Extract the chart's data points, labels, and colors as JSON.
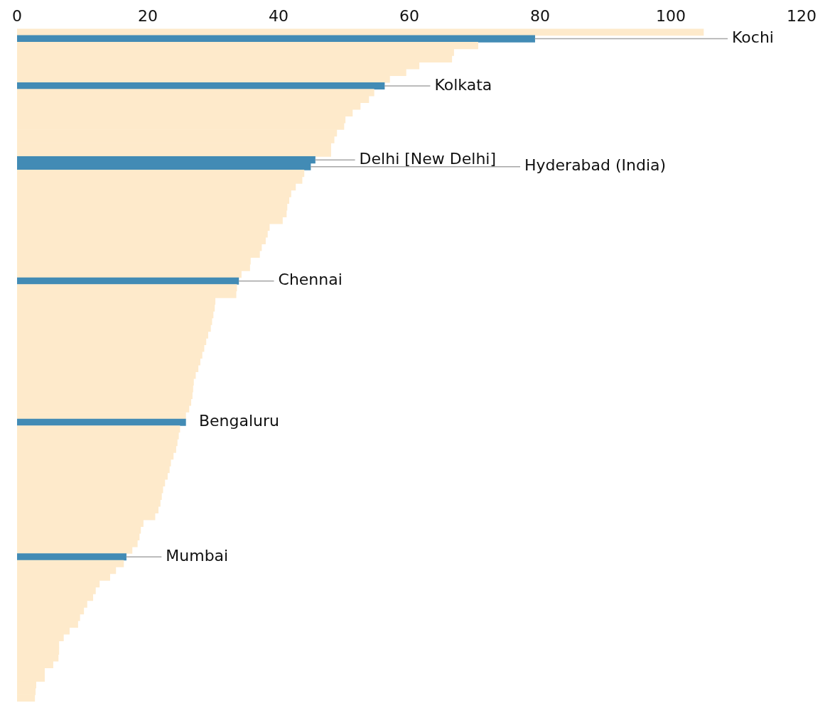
{
  "chart_data": {
    "type": "bar",
    "orientation": "horizontal",
    "categories": [
      null,
      "Kochi",
      null,
      null,
      null,
      null,
      null,
      null,
      "Kolkata",
      null,
      null,
      null,
      null,
      null,
      null,
      null,
      null,
      null,
      null,
      "Delhi [New Delhi]",
      "Hyderabad (India)",
      null,
      null,
      null,
      null,
      null,
      null,
      null,
      null,
      null,
      null,
      null,
      null,
      null,
      null,
      null,
      null,
      "Chennai",
      null,
      null,
      null,
      null,
      null,
      null,
      null,
      null,
      null,
      null,
      null,
      null,
      null,
      null,
      null,
      null,
      null,
      null,
      null,
      null,
      "Bengaluru",
      null,
      null,
      null,
      null,
      null,
      null,
      null,
      null,
      null,
      null,
      null,
      null,
      null,
      null,
      null,
      null,
      null,
      null,
      null,
      "Mumbai",
      null,
      null,
      null,
      null,
      null,
      null,
      null,
      null,
      null,
      null,
      null,
      null,
      null,
      null,
      null,
      null,
      null,
      null,
      null,
      null,
      null
    ],
    "values": [
      105.0,
      79.2,
      70.5,
      66.8,
      66.5,
      61.5,
      59.5,
      57.0,
      56.2,
      54.6,
      53.8,
      52.5,
      51.3,
      50.2,
      50.0,
      48.9,
      48.5,
      48.0,
      48.0,
      45.6,
      44.9,
      43.9,
      43.6,
      42.6,
      41.9,
      41.6,
      41.3,
      41.2,
      40.6,
      38.6,
      38.3,
      38.0,
      37.4,
      37.1,
      35.7,
      35.6,
      34.3,
      33.9,
      33.6,
      33.5,
      30.3,
      30.2,
      30.0,
      29.8,
      29.6,
      29.2,
      28.9,
      28.6,
      28.3,
      28.0,
      27.7,
      27.3,
      27.0,
      26.9,
      26.8,
      26.6,
      26.3,
      25.8,
      25.8,
      24.9,
      24.7,
      24.5,
      24.3,
      23.9,
      23.5,
      23.3,
      23.0,
      22.6,
      22.3,
      22.1,
      21.9,
      21.6,
      21.1,
      19.3,
      18.9,
      18.7,
      18.4,
      17.6,
      16.7,
      16.3,
      15.1,
      14.2,
      12.6,
      12.0,
      11.6,
      10.7,
      10.2,
      9.6,
      9.3,
      8.0,
      7.1,
      6.4,
      6.4,
      6.3,
      5.5,
      4.2,
      4.2,
      2.9,
      2.8,
      2.7
    ],
    "colors": [
      "#feeacb",
      "#428bb5",
      "#feeacb",
      "#feeacb",
      "#feeacb",
      "#feeacb",
      "#feeacb",
      "#feeacb",
      "#428bb5",
      "#feeacb",
      "#feeacb",
      "#feeacb",
      "#feeacb",
      "#feeacb",
      "#feeacb",
      "#feeacb",
      "#feeacb",
      "#feeacb",
      "#feeacb",
      "#428bb5",
      "#428bb5",
      "#feeacb",
      "#feeacb",
      "#feeacb",
      "#feeacb",
      "#feeacb",
      "#feeacb",
      "#feeacb",
      "#feeacb",
      "#feeacb",
      "#feeacb",
      "#feeacb",
      "#feeacb",
      "#feeacb",
      "#feeacb",
      "#feeacb",
      "#feeacb",
      "#428bb5",
      "#feeacb",
      "#feeacb",
      "#feeacb",
      "#feeacb",
      "#feeacb",
      "#feeacb",
      "#feeacb",
      "#feeacb",
      "#feeacb",
      "#feeacb",
      "#feeacb",
      "#feeacb",
      "#feeacb",
      "#feeacb",
      "#feeacb",
      "#feeacb",
      "#feeacb",
      "#feeacb",
      "#feeacb",
      "#feeacb",
      "#428bb5",
      "#feeacb",
      "#feeacb",
      "#feeacb",
      "#feeacb",
      "#feeacb",
      "#feeacb",
      "#feeacb",
      "#feeacb",
      "#feeacb",
      "#feeacb",
      "#feeacb",
      "#feeacb",
      "#feeacb",
      "#feeacb",
      "#feeacb",
      "#feeacb",
      "#feeacb",
      "#feeacb",
      "#feeacb",
      "#428bb5",
      "#feeacb",
      "#feeacb",
      "#feeacb",
      "#feeacb",
      "#feeacb",
      "#feeacb",
      "#feeacb",
      "#feeacb",
      "#feeacb",
      "#feeacb",
      "#feeacb",
      "#feeacb",
      "#feeacb",
      "#feeacb",
      "#feeacb",
      "#feeacb",
      "#feeacb",
      "#feeacb",
      "#feeacb",
      "#feeacb",
      "#feeacb"
    ],
    "xlim": [
      0,
      120
    ],
    "xticks": [
      0,
      20,
      40,
      60,
      80,
      100,
      120
    ],
    "tick_labels": "x",
    "grid": false,
    "legend": false
  }
}
